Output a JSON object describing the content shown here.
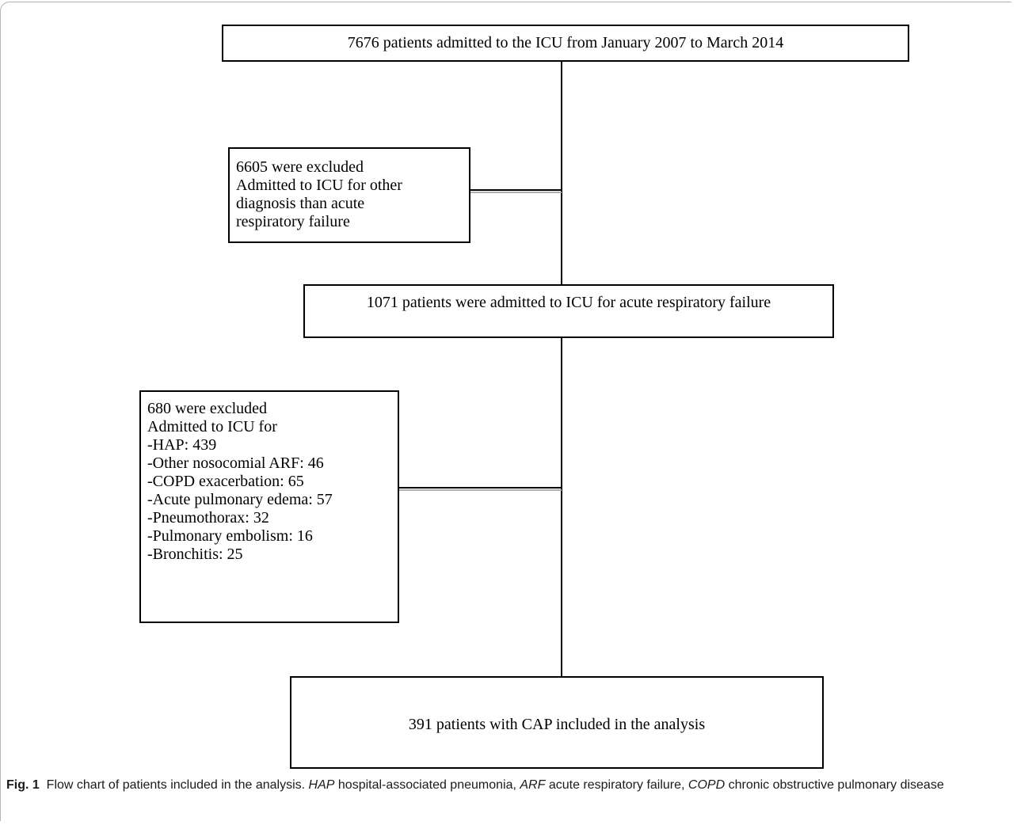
{
  "boxes": {
    "total": "7676 patients admitted to the ICU from January 2007 to March 2014",
    "excluded_first": {
      "lines": [
        "6605 were excluded",
        "Admitted to ICU for other",
        "diagnosis than acute",
        "respiratory failure"
      ]
    },
    "arf": "1071 patients were admitted to ICU for acute respiratory failure",
    "excluded_second": {
      "lines": [
        "680 were excluded",
        "Admitted to ICU for",
        "-HAP: 439",
        "-Other nosocomial ARF: 46",
        "-COPD exacerbation: 65",
        "-Acute pulmonary edema: 57",
        "-Pneumothorax: 32",
        "-Pulmonary embolism: 16",
        "-Bronchitis: 25"
      ]
    },
    "cap": "391 patients with CAP included in the analysis"
  },
  "caption": {
    "label": "Fig. 1",
    "text": "Flow chart of patients included in the analysis.",
    "abbreviations": [
      {
        "abbr": "HAP",
        "definition": "hospital-associated pneumonia"
      },
      {
        "abbr": "ARF",
        "definition": "acute respiratory failure"
      },
      {
        "abbr": "COPD",
        "definition": "chronic obstructive pulmonary disease"
      }
    ]
  }
}
